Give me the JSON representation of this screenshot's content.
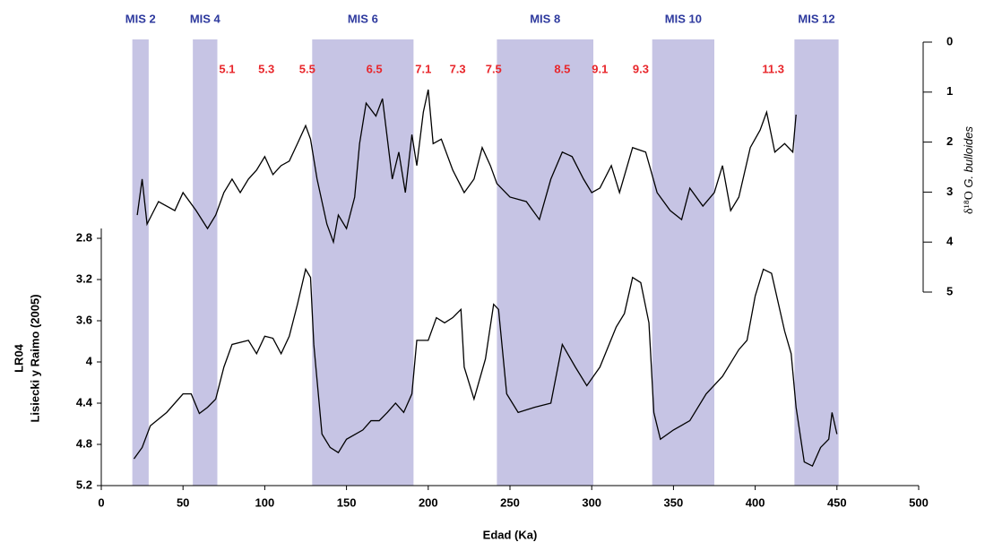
{
  "chart_data": {
    "type": "line",
    "xlabel": "Edad (Ka)",
    "ylabel": [
      "LR04",
      "Lisiecki y Raimo (2005)"
    ],
    "y2label": [
      "δ¹⁸O",
      "G. bulloides"
    ],
    "xlim": [
      0,
      500
    ],
    "xticks": [
      0,
      50,
      100,
      150,
      200,
      250,
      300,
      350,
      400,
      450,
      500
    ],
    "ylim": [
      2.8,
      5.2
    ],
    "yticks": [
      2.8,
      3.2,
      3.6,
      4,
      4.4,
      4.8,
      5.2
    ],
    "y_inverted": true,
    "y2lim": [
      0,
      5
    ],
    "y2ticks": [
      0,
      1,
      2,
      3,
      4,
      5
    ],
    "y2_inverted": true,
    "band_color": "#c6c4e4",
    "band_label_color": "#2e3a9e",
    "annotation_color": "#e8262b",
    "bands": [
      {
        "label": "MIS 2",
        "start": 19,
        "end": 29
      },
      {
        "label": "MIS 4",
        "start": 56,
        "end": 71
      },
      {
        "label": "MIS 6",
        "start": 129,
        "end": 191
      },
      {
        "label": "MIS 8",
        "start": 242,
        "end": 301
      },
      {
        "label": "MIS 10",
        "start": 337,
        "end": 375
      },
      {
        "label": "MIS 12",
        "start": 424,
        "end": 451
      }
    ],
    "annotations": [
      {
        "text": "5.1",
        "x": 77
      },
      {
        "text": "5.3",
        "x": 101
      },
      {
        "text": "5.5",
        "x": 126
      },
      {
        "text": "6.5",
        "x": 167
      },
      {
        "text": "7.1",
        "x": 197
      },
      {
        "text": "7.3",
        "x": 218
      },
      {
        "text": "7.5",
        "x": 240
      },
      {
        "text": "8.5",
        "x": 282
      },
      {
        "text": "9.1",
        "x": 305
      },
      {
        "text": "9.3",
        "x": 330
      },
      {
        "text": "11.3",
        "x": 411
      }
    ],
    "series": [
      {
        "color": "#000000",
        "axis": "y2",
        "x": [
          22,
          25,
          28,
          35,
          45,
          50,
          58,
          65,
          70,
          75,
          80,
          85,
          90,
          95,
          100,
          105,
          110,
          115,
          120,
          125,
          128,
          132,
          138,
          142,
          145,
          150,
          155,
          158,
          162,
          168,
          172,
          178,
          182,
          186,
          190,
          193,
          197,
          200,
          203,
          208,
          215,
          222,
          228,
          233,
          238,
          242,
          250,
          260,
          268,
          275,
          282,
          288,
          295,
          300,
          305,
          312,
          317,
          325,
          333,
          340,
          348,
          355,
          360,
          368,
          375,
          380,
          385,
          390,
          397,
          403,
          407,
          412,
          418,
          423,
          425
        ],
        "values": [
          3.46,
          2.74,
          3.64,
          3.19,
          3.37,
          3.01,
          3.37,
          3.73,
          3.46,
          3.01,
          2.74,
          3.01,
          2.74,
          2.56,
          2.29,
          2.65,
          2.47,
          2.38,
          2.03,
          1.67,
          1.94,
          2.74,
          3.64,
          4.0,
          3.46,
          3.73,
          3.1,
          2.03,
          1.22,
          1.48,
          1.13,
          2.74,
          2.2,
          3.01,
          1.85,
          2.47,
          1.4,
          0.95,
          2.03,
          1.94,
          2.56,
          3.01,
          2.74,
          2.11,
          2.47,
          2.83,
          3.1,
          3.19,
          3.55,
          2.74,
          2.2,
          2.29,
          2.74,
          3.01,
          2.92,
          2.47,
          3.01,
          2.11,
          2.2,
          3.01,
          3.37,
          3.55,
          2.92,
          3.28,
          3.01,
          2.47,
          3.37,
          3.1,
          2.11,
          1.76,
          1.4,
          2.2,
          2.03,
          2.2,
          1.45
        ]
      },
      {
        "color": "#000000",
        "x": [
          20,
          25,
          30,
          40,
          50,
          55,
          60,
          65,
          70,
          75,
          80,
          90,
          95,
          100,
          105,
          110,
          115,
          120,
          125,
          128,
          130,
          135,
          140,
          145,
          150,
          160,
          165,
          170,
          175,
          180,
          185,
          190,
          193,
          200,
          205,
          210,
          215,
          220,
          222,
          228,
          235,
          240,
          243,
          248,
          255,
          265,
          275,
          282,
          290,
          297,
          305,
          315,
          320,
          325,
          330,
          335,
          338,
          342,
          350,
          360,
          370,
          380,
          390,
          395,
          400,
          405,
          410,
          418,
          422,
          425,
          430,
          435,
          440,
          445,
          447,
          450
        ],
        "values": [
          4.94,
          4.83,
          4.62,
          4.49,
          4.31,
          4.31,
          4.5,
          4.44,
          4.36,
          4.05,
          3.83,
          3.79,
          3.92,
          3.75,
          3.77,
          3.92,
          3.75,
          3.44,
          3.1,
          3.18,
          3.83,
          4.7,
          4.83,
          4.88,
          4.75,
          4.66,
          4.57,
          4.57,
          4.49,
          4.4,
          4.49,
          4.31,
          3.79,
          3.79,
          3.57,
          3.62,
          3.57,
          3.49,
          4.05,
          4.36,
          3.97,
          3.44,
          3.49,
          4.31,
          4.49,
          4.44,
          4.4,
          3.83,
          4.05,
          4.23,
          4.05,
          3.66,
          3.53,
          3.18,
          3.23,
          3.62,
          4.49,
          4.75,
          4.66,
          4.57,
          4.31,
          4.14,
          3.88,
          3.79,
          3.36,
          3.1,
          3.14,
          3.7,
          3.92,
          4.44,
          4.97,
          5.01,
          4.83,
          4.75,
          4.49,
          4.7
        ]
      }
    ]
  }
}
